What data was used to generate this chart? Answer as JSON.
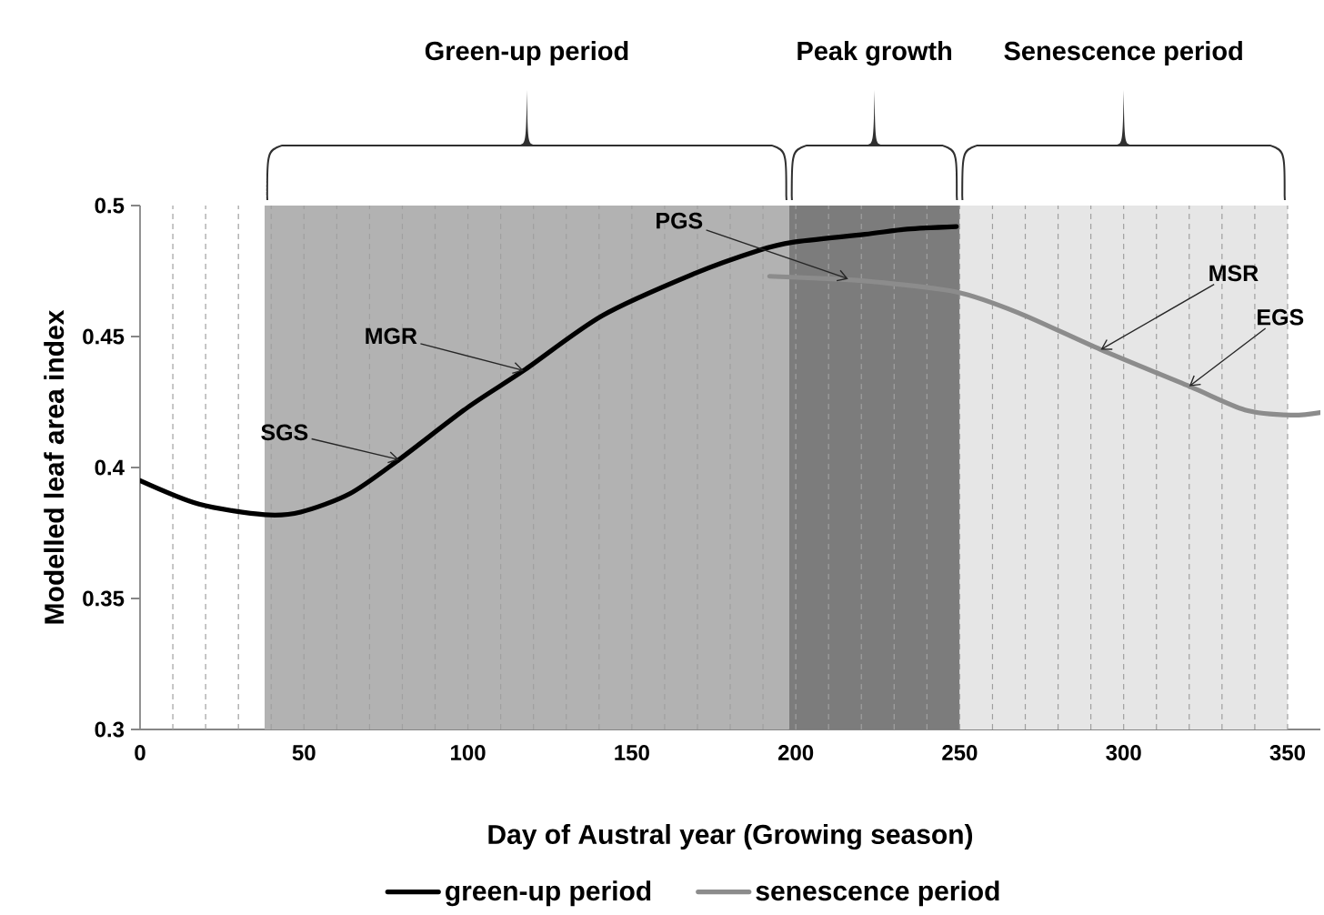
{
  "chart_data": {
    "type": "line",
    "xlabel": "Day of Austral year (Growing season)",
    "ylabel": "Modelled leaf area index",
    "series": [
      {
        "name": "green-up period",
        "color": "#000000",
        "x": [
          0,
          18,
          38,
          49,
          64,
          79,
          100,
          117,
          141,
          169,
          189,
          199,
          221,
          234,
          249
        ],
        "values": [
          0.395,
          0.386,
          0.382,
          0.383,
          0.39,
          0.403,
          0.423,
          0.437,
          0.458,
          0.474,
          0.483,
          0.486,
          0.489,
          0.491,
          0.492
        ]
      },
      {
        "name": "senescence period",
        "color": "#8c8c8c",
        "x": [
          192,
          211,
          223,
          249,
          268,
          293,
          320,
          337,
          351,
          360
        ],
        "values": [
          0.473,
          0.472,
          0.471,
          0.467,
          0.459,
          0.445,
          0.431,
          0.422,
          0.42,
          0.421
        ]
      }
    ],
    "xlim": [
      0,
      360
    ],
    "ylim": [
      0.3,
      0.5
    ],
    "xticks": [
      0,
      {
        "value": 10,
        "label": null
      },
      {
        "value": 20,
        "label": null
      },
      {
        "value": 30,
        "label": null
      },
      {
        "value": 40,
        "label": null
      },
      50,
      {
        "value": 60,
        "label": null
      },
      {
        "value": 70,
        "label": null
      },
      {
        "value": 80,
        "label": null
      },
      {
        "value": 90,
        "label": null
      },
      100,
      {
        "value": 110,
        "label": null
      },
      {
        "value": 120,
        "label": null
      },
      {
        "value": 130,
        "label": null
      },
      {
        "value": 140,
        "label": null
      },
      150,
      {
        "value": 160,
        "label": null
      },
      {
        "value": 170,
        "label": null
      },
      {
        "value": 180,
        "label": null
      },
      {
        "value": 190,
        "label": null
      },
      200,
      {
        "value": 210,
        "label": null
      },
      {
        "value": 220,
        "label": null
      },
      {
        "value": 230,
        "label": null
      },
      {
        "value": 240,
        "label": null
      },
      250,
      {
        "value": 260,
        "label": null
      },
      {
        "value": 270,
        "label": null
      },
      {
        "value": 280,
        "label": null
      },
      {
        "value": 290,
        "label": null
      },
      300,
      {
        "value": 310,
        "label": null
      },
      {
        "value": 320,
        "label": null
      },
      {
        "value": 330,
        "label": null
      },
      {
        "value": 340,
        "label": null
      },
      350
    ],
    "yticks": [
      0.3,
      0.35,
      0.4,
      0.45,
      0.5
    ],
    "grid": "x",
    "legend": "bottom",
    "marker": "none",
    "line_style": "solid",
    "bands": [
      {
        "axis": "x",
        "from": 38,
        "to": 198,
        "color": "#b2b2b2"
      },
      {
        "axis": "x",
        "from": 198,
        "to": 250,
        "color": "#7c7c7c"
      },
      {
        "axis": "x",
        "from": 250,
        "to": 350,
        "color": "#e6e6e6"
      }
    ],
    "annotations": [
      "Green-up period",
      "Peak growth",
      "Senescence period",
      {
        "text": "SGS",
        "x": 79,
        "y": 0.403
      },
      {
        "text": "MGR",
        "x": 117,
        "y": 0.437
      },
      {
        "text": "PGS",
        "x": 216,
        "y": 0.472
      },
      {
        "text": "MSR",
        "x": 293,
        "y": 0.445
      },
      {
        "text": "EGS",
        "x": 320,
        "y": 0.431
      }
    ]
  }
}
